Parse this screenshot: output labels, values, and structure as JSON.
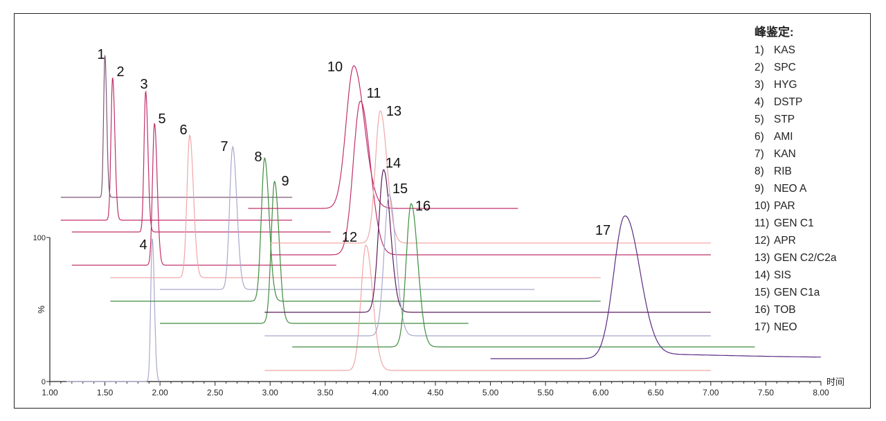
{
  "chart_data": {
    "type": "line",
    "xlabel": "时间",
    "ylabel": "%",
    "xlim": [
      1.0,
      8.0
    ],
    "x_ticks": [
      "1.00",
      "1.50",
      "2.00",
      "2.50",
      "3.00",
      "3.50",
      "4.00",
      "4.50",
      "5.00",
      "5.50",
      "6.00",
      "6.50",
      "7.00",
      "7.50",
      "8.00"
    ],
    "y_ticks": [
      "0",
      "100"
    ],
    "legend": {
      "title": "峰鉴定:",
      "placement": "right",
      "entries": [
        {
          "num": "1)",
          "name": "KAS"
        },
        {
          "num": "2)",
          "name": "SPC"
        },
        {
          "num": "3)",
          "name": "HYG"
        },
        {
          "num": "4)",
          "name": "DSTP"
        },
        {
          "num": "5)",
          "name": "STP"
        },
        {
          "num": "6)",
          "name": "AMI"
        },
        {
          "num": "7)",
          "name": "KAN"
        },
        {
          "num": "8)",
          "name": "RIB"
        },
        {
          "num": "9)",
          "name": "NEO A"
        },
        {
          "num": "10)",
          "name": "PAR"
        },
        {
          "num": "11)",
          "name": "GEN C1"
        },
        {
          "num": "12)",
          "name": "APR"
        },
        {
          "num": "13)",
          "name": "GEN C2/C2a"
        },
        {
          "num": "14)",
          "name": "SIS"
        },
        {
          "num": "15)",
          "name": "GEN C1a"
        },
        {
          "num": "16)",
          "name": "TOB"
        },
        {
          "num": "17)",
          "name": "NEO"
        }
      ]
    },
    "peaks": [
      {
        "label": "1",
        "rt": 1.5,
        "x_range": [
          1.1,
          3.2
        ],
        "width": 0.012,
        "color": "#7d5676"
      },
      {
        "label": "2",
        "rt": 1.57,
        "x_range": [
          1.1,
          3.2
        ],
        "width": 0.015,
        "color": "#c0306a"
      },
      {
        "label": "3",
        "rt": 1.87,
        "x_range": [
          1.2,
          3.55
        ],
        "width": 0.015,
        "color": "#c0306a"
      },
      {
        "label": "4",
        "rt": 1.93,
        "x_range": [
          1.15,
          2.0
        ],
        "width": 0.014,
        "color": "#a8a8cc"
      },
      {
        "label": "5",
        "rt": 1.95,
        "x_range": [
          1.2,
          3.6
        ],
        "width": 0.018,
        "color": "#c0306a"
      },
      {
        "label": "6",
        "rt": 2.27,
        "x_range": [
          1.55,
          6.0
        ],
        "width": 0.025,
        "color": "#f0a6a6"
      },
      {
        "label": "7",
        "rt": 2.66,
        "x_range": [
          2.0,
          5.4
        ],
        "width": 0.028,
        "color": "#a8a8cc"
      },
      {
        "label": "8",
        "rt": 2.95,
        "x_range": [
          1.55,
          6.0
        ],
        "width": 0.03,
        "color": "#3f8c3f"
      },
      {
        "label": "9",
        "rt": 3.04,
        "x_range": [
          2.0,
          4.8
        ],
        "width": 0.03,
        "color": "#3f8c3f"
      },
      {
        "label": "10",
        "rt": 3.76,
        "x_range": [
          2.8,
          5.25
        ],
        "width": 0.07,
        "color": "#c0306a"
      },
      {
        "label": "11",
        "rt": 3.82,
        "x_range": [
          3.0,
          7.0
        ],
        "width": 0.065,
        "color": "#c0306a"
      },
      {
        "label": "12",
        "rt": 3.87,
        "x_range": [
          2.95,
          7.0
        ],
        "width": 0.045,
        "color": "#f0a6a6"
      },
      {
        "label": "13",
        "rt": 4.0,
        "x_range": [
          3.0,
          7.0
        ],
        "width": 0.045,
        "color": "#f0a6a6"
      },
      {
        "label": "14",
        "rt": 4.03,
        "x_range": [
          2.95,
          7.0
        ],
        "width": 0.045,
        "color": "#5a1a5a"
      },
      {
        "label": "15",
        "rt": 4.08,
        "x_range": [
          2.95,
          7.0
        ],
        "width": 0.045,
        "color": "#a8a8cc"
      },
      {
        "label": "16",
        "rt": 4.28,
        "x_range": [
          3.2,
          7.4
        ],
        "width": 0.045,
        "color": "#3f8c3f"
      },
      {
        "label": "17",
        "rt": 6.22,
        "x_range": [
          5.0,
          8.0
        ],
        "width": 0.1,
        "color": "#5a2a80"
      }
    ]
  }
}
